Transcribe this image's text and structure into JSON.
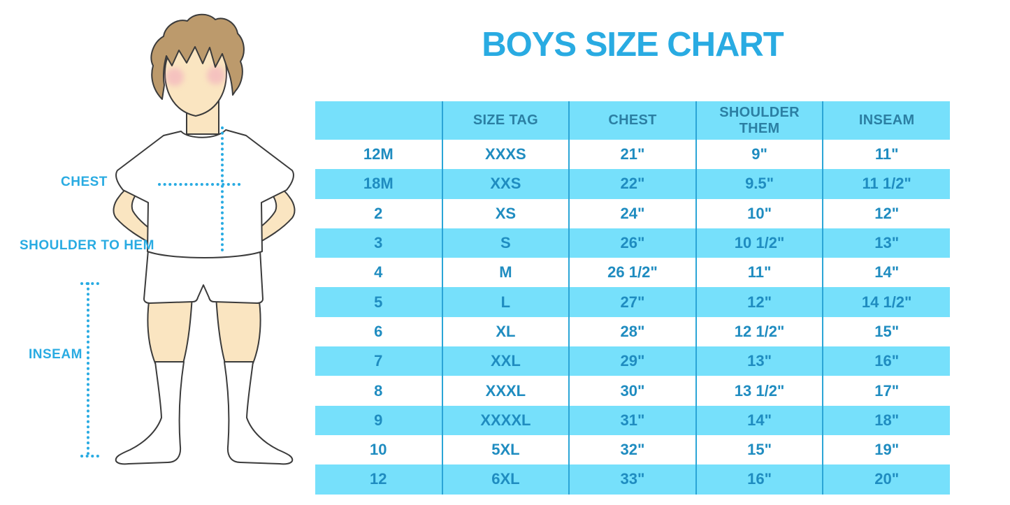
{
  "title": "BOYS SIZE CHART",
  "colors": {
    "accent": "#29ABE2",
    "rowFill": "#76E0FB",
    "divider": "#2BA5D6",
    "headerText": "#2B7FA3",
    "cellText": "#1F8CC0",
    "skin": "#FAE5C1",
    "hair": "#BC9A6C",
    "blush": "#F2ACBE",
    "outline": "#3B3B3B"
  },
  "diagram": {
    "labels": {
      "chest": "CHEST",
      "shoulder_to_hem": "SHOULDER TO HEM",
      "inseam": "INSEAM"
    }
  },
  "chart_data": {
    "type": "table",
    "title": "BOYS SIZE CHART",
    "headers": [
      "",
      "SIZE TAG",
      "CHEST",
      "SHOULDER THEM",
      "INSEAM"
    ],
    "rows": [
      [
        "12M",
        "XXXS",
        "21\"",
        "9\"",
        "11\""
      ],
      [
        "18M",
        "XXS",
        "22\"",
        "9.5\"",
        "11 1/2\""
      ],
      [
        "2",
        "XS",
        "24\"",
        "10\"",
        "12\""
      ],
      [
        "3",
        "S",
        "26\"",
        "10 1/2\"",
        "13\""
      ],
      [
        "4",
        "M",
        "26 1/2\"",
        "11\"",
        "14\""
      ],
      [
        "5",
        "L",
        "27\"",
        "12\"",
        "14 1/2\""
      ],
      [
        "6",
        "XL",
        "28\"",
        "12 1/2\"",
        "15\""
      ],
      [
        "7",
        "XXL",
        "29\"",
        "13\"",
        "16\""
      ],
      [
        "8",
        "XXXL",
        "30\"",
        "13 1/2\"",
        "17\""
      ],
      [
        "9",
        "XXXXL",
        "31\"",
        "14\"",
        "18\""
      ],
      [
        "10",
        "5XL",
        "32\"",
        "15\"",
        "19\""
      ],
      [
        "12",
        "6XL",
        "33\"",
        "16\"",
        "20\""
      ]
    ]
  }
}
